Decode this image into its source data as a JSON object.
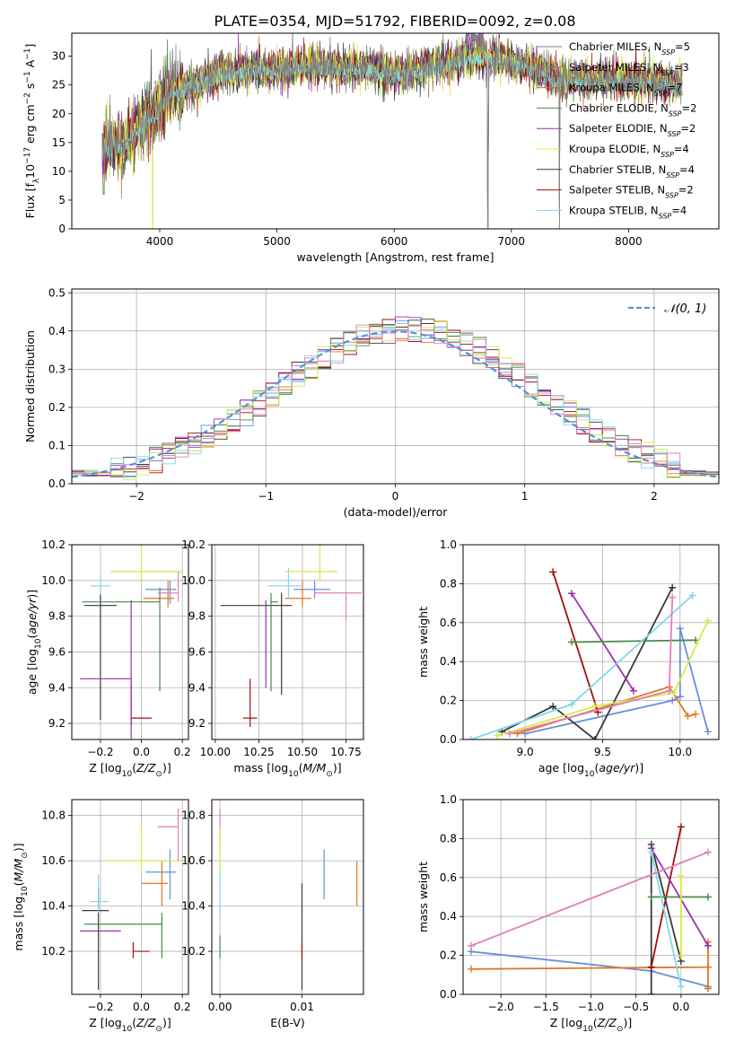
{
  "figure_title": "PLATE=0354, MJD=51792, FIBERID=0092, z=0.08",
  "colors": {
    "series": [
      "#7f7f7f",
      "#7f7f7f",
      "#bf7a30",
      "#4a8a4a",
      "#9a2fb0",
      "#d8e84a",
      "#3a3a3a",
      "#a01010",
      "#80d8e8"
    ],
    "subpanel": [
      "#6a8fd8",
      "#e07820",
      "#3a3a3a",
      "#a01010",
      "#9a2fb0",
      "#4a8a4a",
      "#80d8e8",
      "#d8e84a",
      "#e07fb8"
    ],
    "normal_curve": "#5a8fd8",
    "grid": "#b0b0b0"
  },
  "chart_data": [
    {
      "id": "spectrum",
      "type": "line",
      "xlabel": "wavelength [Angstrom, rest frame]",
      "ylabel": "Flux [f_λ10^-17 erg cm^-2 s^-1 A^-1]",
      "xlim": [
        3250,
        8770
      ],
      "ylim": [
        0,
        34
      ],
      "xticks": [
        4000,
        5000,
        6000,
        7000,
        8000
      ],
      "yticks": [
        0,
        5,
        10,
        15,
        20,
        25,
        30
      ],
      "grid": false,
      "legend_position": "top-right",
      "legend": [
        {
          "label": "Chabrier MILES, N",
          "sub": "SSP",
          "suffix": "=5"
        },
        {
          "label": "Salpeter MILES, N",
          "sub": "SSP",
          "suffix": "=3"
        },
        {
          "label": "Kroupa MILES, N",
          "sub": "SSP",
          "suffix": "=7"
        },
        {
          "label": "Chabrier ELODIE, N",
          "sub": "SSP",
          "suffix": "=2"
        },
        {
          "label": "Salpeter ELODIE, N",
          "sub": "SSP",
          "suffix": "=2"
        },
        {
          "label": "Kroupa ELODIE, N",
          "sub": "SSP",
          "suffix": "=4"
        },
        {
          "label": "Chabrier STELIB, N",
          "sub": "SSP",
          "suffix": "=4"
        },
        {
          "label": "Salpeter STELIB, N",
          "sub": "SSP",
          "suffix": "=2"
        },
        {
          "label": "Kroupa STELIB, N",
          "sub": "SSP",
          "suffix": "=4"
        }
      ],
      "continuum_knots": [
        [
          3500,
          14
        ],
        [
          3700,
          15
        ],
        [
          3900,
          19
        ],
        [
          4000,
          21
        ],
        [
          4100,
          24
        ],
        [
          4300,
          25
        ],
        [
          4500,
          27
        ],
        [
          4800,
          28
        ],
        [
          5000,
          27.5
        ],
        [
          5200,
          28.5
        ],
        [
          5500,
          28
        ],
        [
          5800,
          28
        ],
        [
          6000,
          27
        ],
        [
          6300,
          28
        ],
        [
          6500,
          29
        ],
        [
          6700,
          30
        ],
        [
          7000,
          29
        ],
        [
          7200,
          28
        ],
        [
          7400,
          26
        ],
        [
          8000,
          26
        ],
        [
          8500,
          25
        ]
      ]
    },
    {
      "id": "residuals",
      "type": "step",
      "xlabel": "(data-model)/error",
      "ylabel": "Normed distribution",
      "xlim": [
        -2.5,
        2.5
      ],
      "ylim": [
        0,
        0.51
      ],
      "xticks": [
        -2,
        -1,
        0,
        1,
        2
      ],
      "yticks": [
        0.0,
        0.1,
        0.2,
        0.3,
        0.4,
        0.5
      ],
      "grid": true,
      "legend_position": "top-right",
      "legend_label": "N(0,1)",
      "bin_width": 0.1
    },
    {
      "id": "age-vs-Z",
      "type": "errorbar",
      "xlabel": "Z [log10(Z/Z⊙)]",
      "ylabel": "age  [log10(age/yr)]",
      "xlim": [
        -0.34,
        0.23
      ],
      "ylim": [
        9.11,
        10.2
      ],
      "xticks": [
        -0.2,
        0.0,
        0.2
      ],
      "yticks": [
        9.2,
        9.4,
        9.6,
        9.8,
        10.0,
        10.2
      ],
      "grid": true,
      "points": [
        {
          "x": 0.14,
          "y": 9.95,
          "xerr": [
            0.12,
            0.03
          ],
          "yerr": [
            0.08,
            0.05
          ],
          "c": 0
        },
        {
          "x": 0.13,
          "y": 9.9,
          "xerr": [
            0.12,
            0.03
          ],
          "yerr": [
            0.05,
            0.1
          ],
          "c": 1
        },
        {
          "x": -0.2,
          "y": 9.86,
          "xerr": [
            0.08,
            0.08
          ],
          "yerr": [
            0.64,
            0.07
          ],
          "c": 2
        },
        {
          "x": -0.05,
          "y": 9.23,
          "xerr": [
            0.0,
            0.1
          ],
          "yerr": [
            0.04,
            0.22
          ],
          "c": 3
        },
        {
          "x": -0.05,
          "y": 9.45,
          "xerr": [
            0.25,
            0.0
          ],
          "yerr": [
            0.35,
            0.44
          ],
          "c": 4
        },
        {
          "x": 0.09,
          "y": 9.88,
          "xerr": [
            0.38,
            0.0
          ],
          "yerr": [
            0.5,
            0.08
          ],
          "c": 5
        },
        {
          "x": -0.2,
          "y": 9.97,
          "xerr": [
            0.05,
            0.05
          ],
          "yerr": [
            0.05,
            0.05
          ],
          "c": 6
        },
        {
          "x": 0.0,
          "y": 10.05,
          "xerr": [
            0.15,
            0.2
          ],
          "yerr": [
            0.05,
            0.15
          ],
          "c": 7
        },
        {
          "x": 0.18,
          "y": 9.93,
          "xerr": [
            0.1,
            0.0
          ],
          "yerr": [
            0.05,
            0.12
          ],
          "c": 8
        }
      ]
    },
    {
      "id": "age-vs-mass",
      "type": "errorbar",
      "xlabel": "mass [log10(M/M⊙)]",
      "ylabel": "",
      "xlim": [
        9.98,
        10.85
      ],
      "ylim": [
        9.11,
        10.2
      ],
      "xticks": [
        10.0,
        10.25,
        10.5,
        10.75
      ],
      "yticks": [
        9.2,
        9.4,
        9.6,
        9.8,
        10.0,
        10.2
      ],
      "grid": true,
      "points": [
        {
          "x": 10.57,
          "y": 9.95,
          "xerr": [
            0.12,
            0.09
          ],
          "yerr": [
            0.05,
            0.05
          ],
          "c": 0
        },
        {
          "x": 10.5,
          "y": 9.9,
          "xerr": [
            0.1,
            0.05
          ],
          "yerr": [
            0.05,
            0.1
          ],
          "c": 1
        },
        {
          "x": 10.38,
          "y": 9.86,
          "xerr": [
            0.35,
            0.06
          ],
          "yerr": [
            0.5,
            0.07
          ],
          "c": 2
        },
        {
          "x": 10.2,
          "y": 9.23,
          "xerr": [
            0.04,
            0.04
          ],
          "yerr": [
            0.05,
            0.22
          ],
          "c": 3
        },
        {
          "x": 10.29,
          "y": 9.45,
          "xerr": [
            0.0,
            0.0
          ],
          "yerr": [
            0.05,
            0.44
          ],
          "c": 4
        },
        {
          "x": 10.32,
          "y": 9.88,
          "xerr": [
            0.0,
            0.04
          ],
          "yerr": [
            0.5,
            0.05
          ],
          "c": 5
        },
        {
          "x": 10.42,
          "y": 9.97,
          "xerr": [
            0.12,
            0.08
          ],
          "yerr": [
            0.07,
            0.1
          ],
          "c": 6
        },
        {
          "x": 10.6,
          "y": 10.05,
          "xerr": [
            0.2,
            0.1
          ],
          "yerr": [
            0.05,
            0.15
          ],
          "c": 7
        },
        {
          "x": 10.75,
          "y": 9.93,
          "xerr": [
            0.18,
            0.09
          ],
          "yerr": [
            0.15,
            0.0
          ],
          "c": 8
        }
      ]
    },
    {
      "id": "massweight-vs-age",
      "type": "line",
      "xlabel": "age  [log10(age/yr)]",
      "ylabel": "mass weight",
      "xlim": [
        8.6,
        10.25
      ],
      "ylim": [
        0.0,
        1.0
      ],
      "xticks": [
        9.0,
        9.5,
        10.0
      ],
      "yticks": [
        0.0,
        0.2,
        0.4,
        0.6,
        0.8,
        1.0
      ],
      "grid": true,
      "series": [
        {
          "c": 0,
          "x": [
            9.0,
            9.95,
            10.0,
            10.0,
            10.18
          ],
          "y": [
            0.03,
            0.2,
            0.22,
            0.57,
            0.04
          ]
        },
        {
          "c": 1,
          "x": [
            8.95,
            9.93,
            10.05,
            10.1
          ],
          "y": [
            0.03,
            0.27,
            0.12,
            0.13
          ]
        },
        {
          "c": 2,
          "x": [
            8.85,
            9.18,
            9.45,
            9.95
          ],
          "y": [
            0.04,
            0.17,
            0.0,
            0.78
          ]
        },
        {
          "c": 3,
          "x": [
            9.18,
            9.47
          ],
          "y": [
            0.86,
            0.14
          ]
        },
        {
          "c": 4,
          "x": [
            9.3,
            9.7
          ],
          "y": [
            0.75,
            0.25
          ]
        },
        {
          "c": 5,
          "x": [
            9.3,
            10.1
          ],
          "y": [
            0.5,
            0.51
          ]
        },
        {
          "c": 6,
          "x": [
            8.65,
            9.3,
            10.08
          ],
          "y": [
            0.0,
            0.18,
            0.74
          ]
        },
        {
          "c": 7,
          "x": [
            8.82,
            9.45,
            9.96,
            10.18
          ],
          "y": [
            0.02,
            0.17,
            0.24,
            0.61
          ]
        },
        {
          "c": 8,
          "x": [
            8.9,
            9.93,
            9.95
          ],
          "y": [
            0.03,
            0.25,
            0.73
          ]
        }
      ]
    },
    {
      "id": "mass-vs-Z",
      "type": "errorbar",
      "xlabel": "Z [log10(Z/Z⊙)]",
      "ylabel": "mass [log10(M/M⊙)]",
      "xlim": [
        -0.34,
        0.23
      ],
      "ylim": [
        10.01,
        10.87
      ],
      "xticks": [
        -0.2,
        0.0,
        0.2
      ],
      "yticks": [
        10.2,
        10.4,
        10.6,
        10.8
      ],
      "grid": true,
      "points": [
        {
          "x": 0.14,
          "y": 10.55,
          "xerr": [
            0.12,
            0.03
          ],
          "yerr": [
            0.12,
            0.1
          ],
          "c": 0
        },
        {
          "x": 0.1,
          "y": 10.5,
          "xerr": [
            0.1,
            0.03
          ],
          "yerr": [
            0.1,
            0.1
          ],
          "c": 1
        },
        {
          "x": -0.21,
          "y": 10.38,
          "xerr": [
            0.08,
            0.05
          ],
          "yerr": [
            0.35,
            0.1
          ],
          "c": 2
        },
        {
          "x": -0.04,
          "y": 10.2,
          "xerr": [
            0.0,
            0.08
          ],
          "yerr": [
            0.03,
            0.04
          ],
          "c": 3
        },
        {
          "x": -0.1,
          "y": 10.29,
          "xerr": [
            0.2,
            0.0
          ],
          "yerr": [
            0.0,
            0.0
          ],
          "c": 4
        },
        {
          "x": 0.1,
          "y": 10.32,
          "xerr": [
            0.38,
            0.0
          ],
          "yerr": [
            0.15,
            0.05
          ],
          "c": 5
        },
        {
          "x": -0.21,
          "y": 10.42,
          "xerr": [
            0.04,
            0.05
          ],
          "yerr": [
            0.05,
            0.12
          ],
          "c": 6
        },
        {
          "x": 0.0,
          "y": 10.6,
          "xerr": [
            0.18,
            0.2
          ],
          "yerr": [
            0.05,
            0.15
          ],
          "c": 7
        },
        {
          "x": 0.18,
          "y": 10.75,
          "xerr": [
            0.1,
            0.0
          ],
          "yerr": [
            0.15,
            0.08
          ],
          "c": 8
        }
      ]
    },
    {
      "id": "mass-vs-ebv",
      "type": "errorbar",
      "xlabel": "E(B-V)",
      "ylabel": "",
      "xlim": [
        -0.001,
        0.0175
      ],
      "ylim": [
        10.01,
        10.87
      ],
      "xticks": [
        0.0,
        0.01
      ],
      "yticks": [
        10.2,
        10.4,
        10.6,
        10.8
      ],
      "grid": true,
      "points": [
        {
          "x": 0.0127,
          "y": 10.55,
          "yerr": [
            0.12,
            0.1
          ],
          "c": 0
        },
        {
          "x": 0.0167,
          "y": 10.5,
          "yerr": [
            0.1,
            0.1
          ],
          "c": 1
        },
        {
          "x": 0.01,
          "y": 10.38,
          "yerr": [
            0.35,
            0.12
          ],
          "c": 2
        },
        {
          "x": 0.01,
          "y": 10.2,
          "yerr": [
            0.03,
            0.04
          ],
          "c": 3
        },
        {
          "x": 0.0,
          "y": 10.75,
          "yerr": [
            0.08,
            0.08
          ],
          "c": 8
        },
        {
          "x": 0.0,
          "y": 10.45,
          "yerr": [
            0.1,
            0.15
          ],
          "c": 6
        },
        {
          "x": 0.0,
          "y": 10.6,
          "yerr": [
            0.05,
            0.15
          ],
          "c": 7
        },
        {
          "x": 0.0,
          "y": 10.22,
          "yerr": [
            0.05,
            0.05
          ],
          "c": 5
        }
      ]
    },
    {
      "id": "massweight-vs-Z",
      "type": "line",
      "xlabel": "Z [log10(Z/Z⊙)]",
      "ylabel": "mass weight",
      "xlim": [
        -2.42,
        0.42
      ],
      "ylim": [
        0.0,
        1.0
      ],
      "xticks": [
        -2.0,
        -1.5,
        -1.0,
        -0.5,
        0.0
      ],
      "yticks": [
        0.0,
        0.2,
        0.4,
        0.6,
        0.8,
        1.0
      ],
      "grid": true,
      "series": [
        {
          "c": 0,
          "x": [
            -2.33,
            -0.33,
            0.3,
            0.3
          ],
          "y": [
            0.22,
            0.12,
            0.04,
            0.03
          ]
        },
        {
          "c": 1,
          "x": [
            -2.33,
            0.3,
            0.3,
            0.3
          ],
          "y": [
            0.13,
            0.14,
            0.27,
            0.03
          ]
        },
        {
          "c": 2,
          "x": [
            -0.33,
            -0.33,
            0.0
          ],
          "y": [
            0.0,
            0.77,
            0.17
          ]
        },
        {
          "c": 3,
          "x": [
            -0.33,
            0.0
          ],
          "y": [
            0.14,
            0.86
          ]
        },
        {
          "c": 4,
          "x": [
            -0.33,
            0.3
          ],
          "y": [
            0.75,
            0.25
          ]
        },
        {
          "c": 5,
          "x": [
            -0.33,
            0.3
          ],
          "y": [
            0.5,
            0.5
          ]
        },
        {
          "c": 6,
          "x": [
            -0.33,
            0.0
          ],
          "y": [
            0.73,
            0.04
          ]
        },
        {
          "c": 7,
          "x": [
            0.0,
            0.0,
            0.0
          ],
          "y": [
            0.2,
            0.61,
            0.2
          ]
        },
        {
          "c": 8,
          "x": [
            -2.33,
            0.3
          ],
          "y": [
            0.25,
            0.73
          ]
        }
      ]
    }
  ]
}
